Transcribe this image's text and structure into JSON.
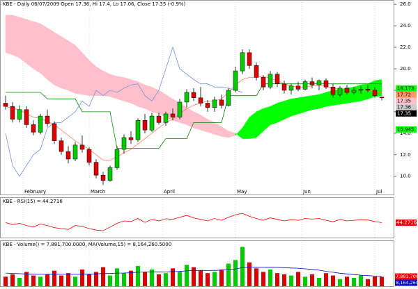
{
  "chart_data": {
    "type": "candlestick",
    "title": "KBE - Daily 06/07/2009 Open 17.36, Hi 17.4, Lo 17.06, Close 17.35 (-0.9%)",
    "rsi_title": "KBE - RSI(15) = 44.2716",
    "volume_title": "KBE - Volume() = 7,881,700.0000, MA(Volume,15) = 8,164,260.5000",
    "xlim": [
      -0.8,
      55.7
    ],
    "xticks": [
      {
        "value": 2.5,
        "label": "February"
      },
      {
        "value": 12,
        "label": "March"
      },
      {
        "value": 22.5,
        "label": "April"
      },
      {
        "value": 33,
        "label": "May"
      },
      {
        "value": 42.5,
        "label": "Jun"
      },
      {
        "value": 53,
        "label": "Jul"
      }
    ],
    "ylim": [
      8.3,
      26.4
    ],
    "yticks": [
      {
        "value": 10,
        "label": "10.0"
      },
      {
        "value": 12,
        "label": "12.0"
      },
      {
        "value": 14,
        "label": "14.0"
      },
      {
        "value": 16,
        "label": "16.0"
      },
      {
        "value": 18,
        "label": "18.0"
      },
      {
        "value": 20,
        "label": "20.0"
      },
      {
        "value": 22,
        "label": "22.0"
      },
      {
        "value": 24,
        "label": "24.0"
      },
      {
        "value": 26,
        "label": "26.0"
      }
    ],
    "up_color": "#00cc00",
    "down_color": "#dd0000",
    "open": [
      16.8,
      16.5,
      15.3,
      16.2,
      14.8,
      14.1,
      15.6,
      14.9,
      13.3,
      12.3,
      11.6,
      12.9,
      12.5,
      11.3,
      10.1,
      9.6,
      10.8,
      12.5,
      13.6,
      13.4,
      15.2,
      14.3,
      15.6,
      15.0,
      15.8,
      15.5,
      16.9,
      17.8,
      17.3,
      16.8,
      16.4,
      17.1,
      16.6,
      18.0,
      19.8,
      21.5,
      20.3,
      19.2,
      18.3,
      19.5,
      18.6,
      18.0,
      18.4,
      18.1,
      18.8,
      18.5,
      18.9,
      18.3,
      17.6,
      18.2,
      17.8,
      18.0,
      18.1,
      18.0,
      17.36
    ],
    "high": [
      17.5,
      16.9,
      16.6,
      16.5,
      15.2,
      15.8,
      16.2,
      15.1,
      13.6,
      12.8,
      13.2,
      13.8,
      12.7,
      11.6,
      10.4,
      11.0,
      12.8,
      13.9,
      14.2,
      15.4,
      15.8,
      15.9,
      15.9,
      16.0,
      16.3,
      17.2,
      18.1,
      18.2,
      18.3,
      17.1,
      17.4,
      17.6,
      18.2,
      20.2,
      21.8,
      21.8,
      20.6,
      19.4,
      19.8,
      19.7,
      18.9,
      18.6,
      18.8,
      19.0,
      19.2,
      19.0,
      19.1,
      18.6,
      18.4,
      18.5,
      18.3,
      18.4,
      18.5,
      18.3,
      17.4
    ],
    "low": [
      16.2,
      15.0,
      15.0,
      14.5,
      13.8,
      13.9,
      14.6,
      13.0,
      12.0,
      11.2,
      11.4,
      12.2,
      11.0,
      9.8,
      9.2,
      9.5,
      10.6,
      12.1,
      13.0,
      13.2,
      14.0,
      14.1,
      14.8,
      14.7,
      15.2,
      15.3,
      16.4,
      17.0,
      16.5,
      16.0,
      16.0,
      16.3,
      16.5,
      17.8,
      19.5,
      20.0,
      18.9,
      18.0,
      18.1,
      18.3,
      17.7,
      17.6,
      17.9,
      18.0,
      18.2,
      18.0,
      18.1,
      17.3,
      17.4,
      17.6,
      17.6,
      17.7,
      17.8,
      17.3,
      17.06
    ],
    "close": [
      16.5,
      15.3,
      16.2,
      14.8,
      14.1,
      15.6,
      14.9,
      13.3,
      12.3,
      11.6,
      12.9,
      12.5,
      11.3,
      10.1,
      9.6,
      10.8,
      12.5,
      13.6,
      13.4,
      15.2,
      14.3,
      15.6,
      15.0,
      15.8,
      15.5,
      16.9,
      17.8,
      17.3,
      16.8,
      16.4,
      17.1,
      16.6,
      18.0,
      19.8,
      21.5,
      20.3,
      19.2,
      18.3,
      19.5,
      18.6,
      18.0,
      18.4,
      18.1,
      18.8,
      18.5,
      18.9,
      18.3,
      17.6,
      18.2,
      17.8,
      18.0,
      18.1,
      18.0,
      17.5,
      17.35
    ],
    "cloud": {
      "up_color": "#00ff00",
      "down_color": "#ffc0cb",
      "span_a": [
        21.5,
        21.3,
        21,
        20.5,
        20,
        19.6,
        19,
        18.5,
        18.2,
        18,
        17.7,
        17.6,
        17.5,
        17.5,
        17.5,
        17.4,
        17.2,
        17,
        16.8,
        16.5,
        16.3,
        16,
        15.8,
        15.5,
        15.2,
        15,
        14.8,
        14.5,
        14.3,
        14.1,
        13.9,
        13.7,
        13.6,
        13.8,
        14.5,
        15.5,
        16,
        16.3,
        16.5,
        16.8,
        17,
        17.2,
        17.3,
        17.4,
        17.5,
        17.6,
        17.8,
        18,
        18.1,
        18.2,
        18.3,
        18.5,
        18.6,
        18.9,
        19
      ],
      "span_b": [
        25,
        25,
        24.8,
        24.6,
        24.4,
        24.2,
        23.8,
        23.4,
        23,
        22.6,
        22.2,
        21.5,
        20.8,
        20.2,
        19.8,
        19.5,
        19.3,
        19.2,
        19,
        18.8,
        18.5,
        18.3,
        18,
        17.6,
        17.2,
        16.8,
        16.4,
        16,
        15.7,
        15.3,
        15,
        14.6,
        14.2,
        14,
        13.5,
        13.5,
        13.6,
        14.2,
        14.8,
        15,
        15.3,
        15.6,
        15.8,
        16,
        16.2,
        16.3,
        16.5,
        16.6,
        16.7,
        16.8,
        16.9,
        17,
        17.2,
        17.4,
        17.5
      ]
    },
    "lines": [
      {
        "color": "#008800",
        "values": [
          17.8,
          17.8,
          17.8,
          17.8,
          17.8,
          17.8,
          17.2,
          17.2,
          17.2,
          17.2,
          17.2,
          16,
          16,
          16,
          16,
          16,
          12.6,
          12.6,
          12.6,
          12.6,
          12.6,
          12.6,
          12.6,
          13.5,
          13.5,
          13.5,
          13.5,
          15,
          15,
          15,
          15,
          15,
          17.5,
          17.5,
          17.5,
          17.5,
          17.5,
          18.6,
          18.6,
          18.6,
          18.6,
          18.6,
          18.6,
          18.6,
          18.6,
          18.6,
          18.6,
          18.6,
          18.6,
          18.6,
          18.6,
          18.6,
          18.6,
          18.6,
          18.6
        ]
      },
      {
        "color": "#ff8060",
        "values": [
          16.5,
          16.3,
          16.2,
          15.8,
          15.5,
          15.4,
          15.1,
          14.8,
          14.3,
          13.8,
          13.3,
          12.9,
          12.5,
          12,
          11.5,
          11.5,
          11.8,
          12.2,
          12.5,
          13,
          13.5,
          14,
          14.5,
          15,
          15.3,
          15.8,
          16.3,
          16.6,
          16.8,
          17,
          17,
          17.2,
          17.8,
          18.5,
          19,
          19.2,
          19.2,
          19.3,
          19.1,
          18.9,
          18.6,
          18.4,
          18.3,
          18.3,
          18.4,
          18.5,
          18.4,
          18.2,
          18.1,
          18,
          18,
          18,
          18,
          17.9,
          17.8
        ]
      },
      {
        "color": "#7090e0",
        "values": [
          14,
          11,
          10,
          11,
          12,
          12.5,
          14.5,
          15,
          15,
          15.5,
          16,
          17,
          16.5,
          18,
          17.5,
          18,
          17.8,
          18.2,
          18.5,
          18.6,
          17.5,
          17,
          18,
          20,
          22,
          20,
          19.5,
          19,
          18.6,
          18.6,
          18.3,
          18.3,
          18.2,
          18,
          17.8,
          null,
          null,
          null,
          null,
          null,
          null,
          null,
          null,
          null,
          null,
          null,
          null,
          null,
          null,
          null,
          null,
          null,
          null,
          null,
          null
        ]
      }
    ],
    "price_labels": [
      {
        "value": 18.173,
        "color": "#00ff00"
      },
      {
        "value": 17.72,
        "color": "#ff9966"
      },
      {
        "value": 17.35,
        "color": "#ffc0cb"
      },
      {
        "value": 17.36,
        "color": "#cccccc"
      },
      {
        "value": 17.35,
        "color": "#000000"
      },
      {
        "value": 15.945,
        "color": "#00ff00"
      }
    ],
    "rsi": {
      "color": "#ee0000",
      "ylim": [
        0,
        100
      ],
      "values": [
        45,
        38,
        42,
        35,
        30,
        40,
        35,
        28,
        25,
        22,
        35,
        32,
        25,
        20,
        18,
        30,
        42,
        50,
        48,
        58,
        45,
        55,
        50,
        57,
        55,
        62,
        68,
        60,
        55,
        50,
        58,
        52,
        62,
        70,
        75,
        65,
        58,
        52,
        60,
        55,
        50,
        54,
        52,
        58,
        56,
        58,
        52,
        47,
        55,
        50,
        52,
        54,
        53,
        48,
        44.2716
      ],
      "label": 44.2716
    },
    "volume": {
      "ylim": [
        0,
        35000000
      ],
      "ma_color": "#0000cc",
      "values": [
        8000000,
        10000000,
        7000000,
        12000000,
        9000000,
        8000000,
        10000000,
        13000000,
        9000000,
        11000000,
        8000000,
        14000000,
        10000000,
        12000000,
        16000000,
        9000000,
        15000000,
        11000000,
        13000000,
        17000000,
        12000000,
        14000000,
        10000000,
        11000000,
        15000000,
        12000000,
        18000000,
        16000000,
        13000000,
        11000000,
        12000000,
        14000000,
        19000000,
        22000000,
        33000000,
        20000000,
        15000000,
        12000000,
        14000000,
        11000000,
        10000000,
        9000000,
        12000000,
        8000000,
        10000000,
        7000000,
        11000000,
        9000000,
        6000000,
        8000000,
        7000000,
        9000000,
        6000000,
        8000000,
        7881700
      ],
      "ma": [
        11000000,
        10800000,
        10500000,
        10300000,
        10100000,
        10000000,
        10000000,
        10100000,
        10000000,
        10000000,
        9900000,
        10100000,
        10200000,
        10400000,
        10700000,
        10700000,
        11000000,
        11100000,
        11300000,
        11700000,
        11900000,
        12100000,
        12100000,
        12000000,
        12300000,
        12400000,
        12900000,
        13200000,
        13300000,
        13200000,
        13300000,
        13500000,
        14000000,
        14500000,
        15600000,
        16000000,
        16100000,
        16000000,
        16100000,
        15900000,
        15600000,
        15300000,
        15100000,
        14600000,
        14100000,
        13500000,
        12500000,
        11700000,
        10900000,
        10300000,
        9800000,
        9300000,
        8900000,
        8500000,
        8164260.5
      ],
      "labels": [
        {
          "value": 7881700,
          "label": "7,881,700",
          "color": "#ff0000"
        },
        {
          "value": 8164260.5,
          "label": "8,164,260",
          "color": "#0000cc"
        }
      ]
    }
  }
}
